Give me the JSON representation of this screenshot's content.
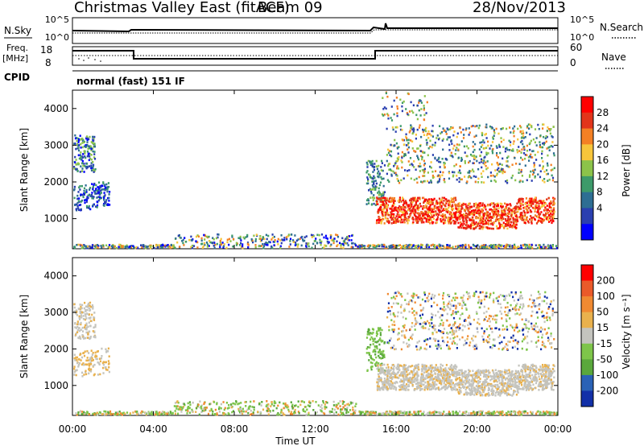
{
  "header": {
    "title": "Christmas Valley East (fitACF)",
    "beam": "Beam 09",
    "date": "28/Nov/2013"
  },
  "top_panels": {
    "nsky_label": "N.Sky",
    "nsearch_label": "N.Search",
    "noise_ticks": [
      "10^5",
      "10^0"
    ],
    "freq_label": "Freq.",
    "freq_unit": "[MHz]",
    "freq_ticks": [
      "18",
      "8"
    ],
    "nave_label": "Nave",
    "nave_ticks": [
      "60",
      "0"
    ],
    "cpid_label": "CPID",
    "cpid_value": "normal (fast) 151 IF"
  },
  "chart_data": [
    {
      "type": "heatmap",
      "name": "power",
      "ylabel": "Slant Range [km]",
      "yticks": [
        1000,
        2000,
        3000,
        4000
      ],
      "ylim": [
        180,
        4500
      ],
      "xlim": [
        0,
        24
      ],
      "colorbar_label": "Power [dB]",
      "colorbar_ticks": [
        "28",
        "24",
        "20",
        "16",
        "12",
        "8",
        "4"
      ],
      "colors": [
        "#0000ff",
        "#2a3fb0",
        "#2e6e93",
        "#3d9a6a",
        "#8cc34a",
        "#f7c53b",
        "#f48024",
        "#e2351b",
        "#ff0000"
      ]
    },
    {
      "type": "heatmap",
      "name": "velocity",
      "ylabel": "Slant Range [km]",
      "yticks": [
        1000,
        2000,
        3000,
        4000
      ],
      "ylim": [
        180,
        4500
      ],
      "xlim": [
        0,
        24
      ],
      "xlabel": "Time UT",
      "xticks": [
        "00:00",
        "04:00",
        "08:00",
        "12:00",
        "16:00",
        "20:00",
        "00:00"
      ],
      "colorbar_label": "Velocity [m s⁻¹]",
      "colorbar_ticks": [
        "200",
        "100",
        "50",
        "15",
        "-15",
        "-50",
        "-100",
        "-200"
      ],
      "colors": [
        "#1230a8",
        "#2a62b6",
        "#5aa83c",
        "#7ec54a",
        "#c4c4be",
        "#e9b14d",
        "#f08a32",
        "#ea5a2a",
        "#ff0000"
      ]
    }
  ]
}
